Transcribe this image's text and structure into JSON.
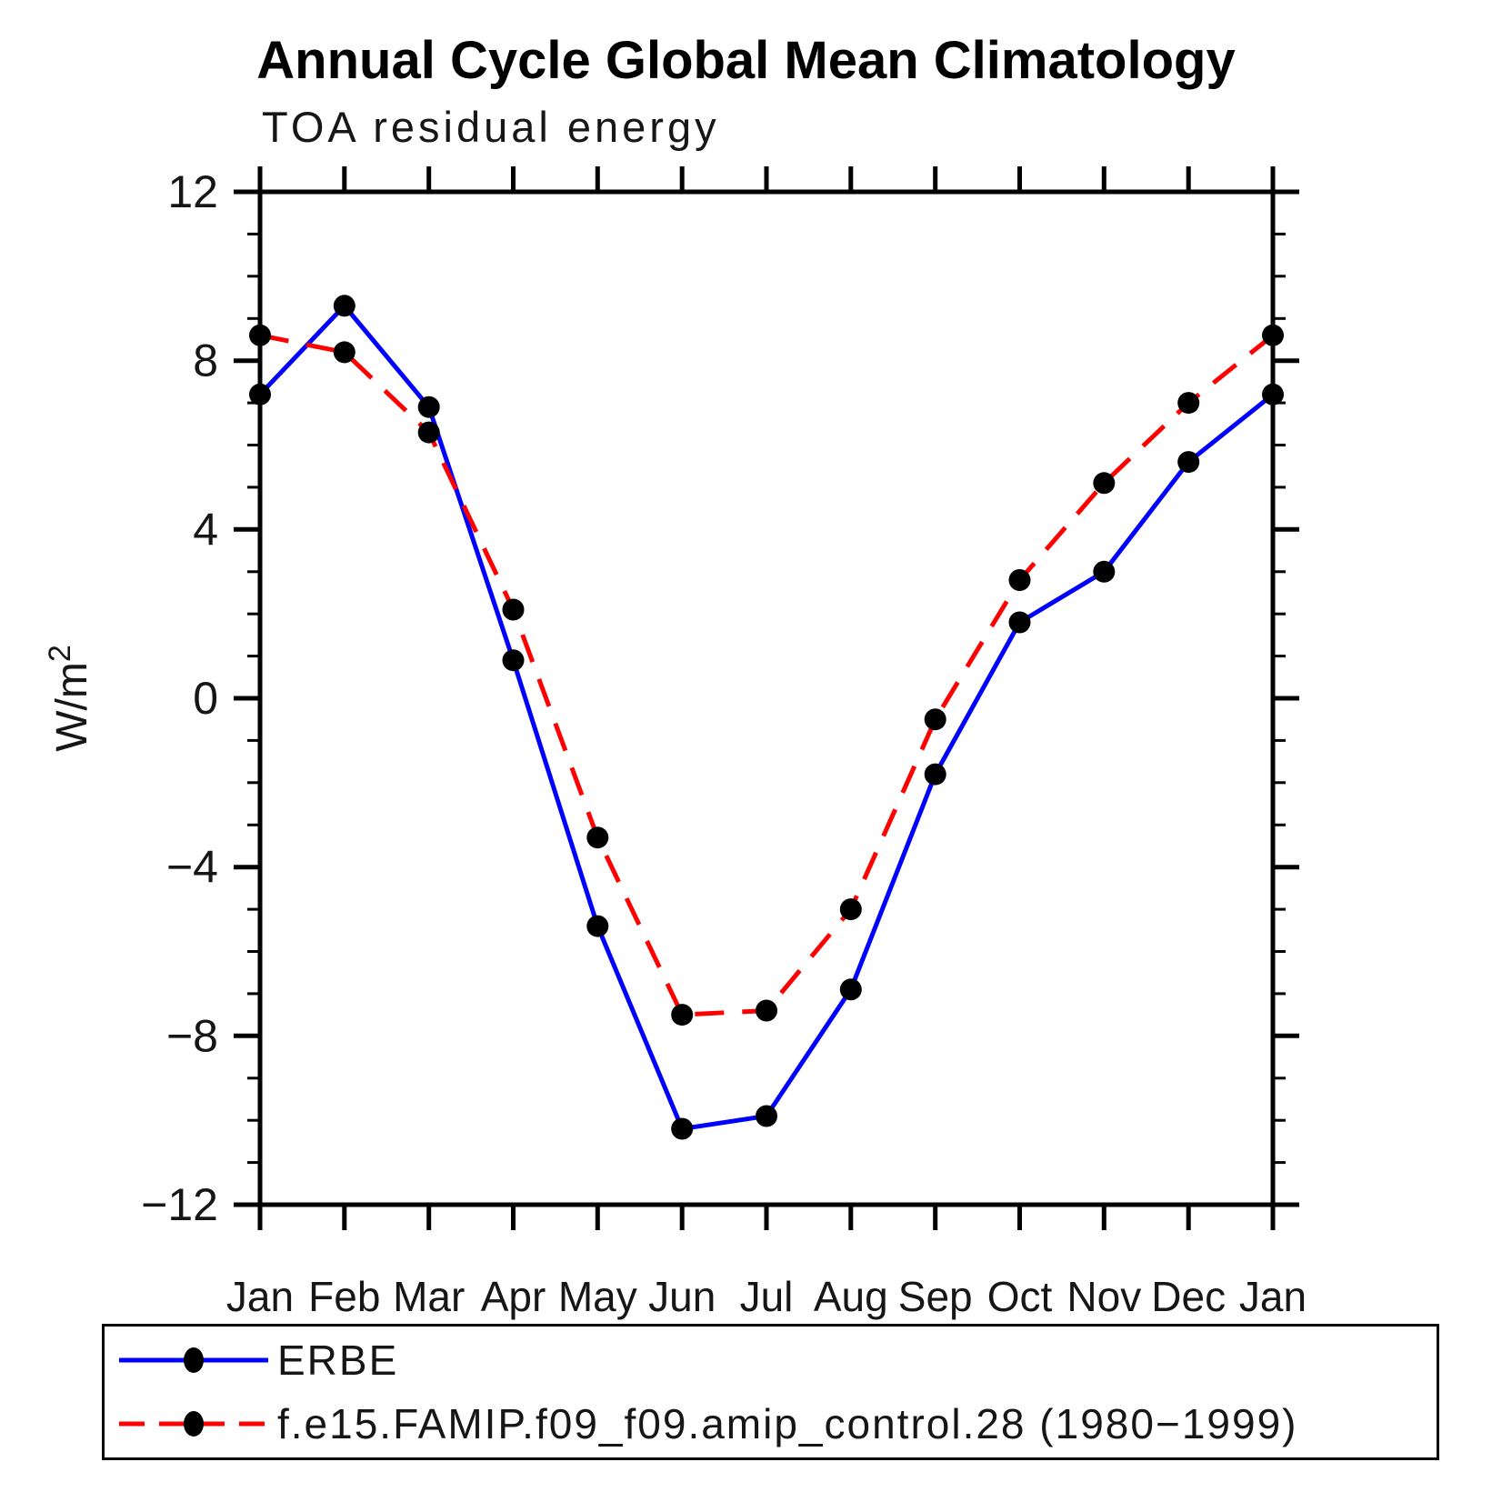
{
  "title": "Annual Cycle Global Mean Climatology",
  "subtitle": "TOA residual energy",
  "chart_data": {
    "type": "line",
    "title": "Annual Cycle Global Mean Climatology",
    "subtitle": "TOA residual energy",
    "categories": [
      "Jan",
      "Feb",
      "Mar",
      "Apr",
      "May",
      "Jun",
      "Jul",
      "Aug",
      "Sep",
      "Oct",
      "Nov",
      "Dec",
      "Jan"
    ],
    "xlabel": "",
    "ylabel": "W/m²",
    "ylim": [
      -12,
      12
    ],
    "ytick_major": [
      12,
      8,
      4,
      0,
      -4,
      -8,
      -12
    ],
    "ytick_minor_step": 1,
    "grid": false,
    "legend_position": "bottom-box",
    "series": [
      {
        "name": "ERBE",
        "color": "#0000ff",
        "line_style": "solid",
        "marker": "filled-circle",
        "marker_color": "#000000",
        "values": [
          7.2,
          9.3,
          6.9,
          0.9,
          -5.4,
          -10.2,
          -9.9,
          -6.9,
          -1.8,
          1.8,
          3.0,
          5.6,
          7.2
        ]
      },
      {
        "name": "f.e15.FAMIP.f09_f09.amip_control.28 (1980−1999)",
        "color": "#ff0000",
        "line_style": "dashed",
        "marker": "filled-circle",
        "marker_color": "#000000",
        "values": [
          8.6,
          8.2,
          6.3,
          2.1,
          -3.3,
          -7.5,
          -7.4,
          -5.0,
          -0.5,
          2.8,
          5.1,
          7.0,
          8.6
        ]
      }
    ]
  }
}
